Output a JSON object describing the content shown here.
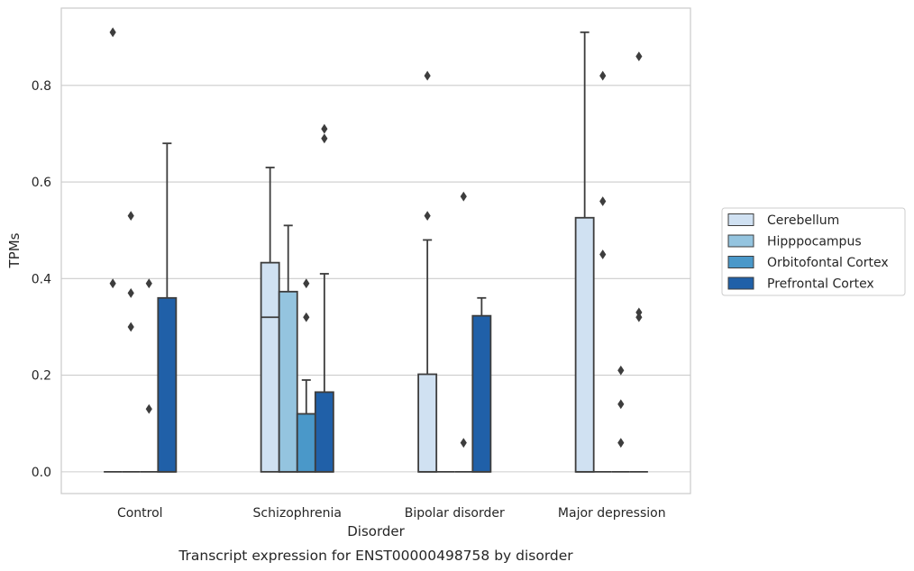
{
  "chart_data": {
    "type": "box",
    "caption": "Transcript expression for ENST00000498758 by disorder",
    "xlabel": "Disorder",
    "ylabel": "TPMs",
    "ylim": [
      -0.045,
      0.96
    ],
    "yticks": [
      0.0,
      0.2,
      0.4,
      0.6,
      0.8
    ],
    "ytick_labels": [
      "0.0",
      "0.2",
      "0.4",
      "0.6",
      "0.8"
    ],
    "grid": "horizontal",
    "legend_position": "right",
    "categories": [
      "Control",
      "Schizophrenia",
      "Bipolar disorder",
      "Major depression"
    ],
    "series": [
      {
        "name": "Cerebellum",
        "color": "#d0e1f2",
        "boxes": [
          {
            "q1": 0,
            "median": 0,
            "q3": 0,
            "whisker_low": 0,
            "whisker_high": 0,
            "outliers": [
              0.91,
              0.39
            ]
          },
          {
            "q1": 0,
            "median": 0.32,
            "q3": 0.433,
            "whisker_low": 0,
            "whisker_high": 0.63,
            "outliers": []
          },
          {
            "q1": 0,
            "median": 0,
            "q3": 0.202,
            "whisker_low": 0,
            "whisker_high": 0.48,
            "outliers": [
              0.82,
              0.53
            ]
          },
          {
            "q1": 0,
            "median": 0,
            "q3": 0.526,
            "whisker_low": 0,
            "whisker_high": 0.91,
            "outliers": []
          }
        ]
      },
      {
        "name": "Hipppocampus",
        "color": "#94c4df",
        "boxes": [
          {
            "q1": 0,
            "median": 0,
            "q3": 0,
            "whisker_low": 0,
            "whisker_high": 0,
            "outliers": [
              0.53,
              0.37,
              0.3
            ]
          },
          {
            "q1": 0,
            "median": 0,
            "q3": 0.373,
            "whisker_low": 0,
            "whisker_high": 0.51,
            "outliers": []
          },
          {
            "q1": 0,
            "median": 0,
            "q3": 0,
            "whisker_low": 0,
            "whisker_high": 0,
            "outliers": []
          },
          {
            "q1": 0,
            "median": 0,
            "q3": 0,
            "whisker_low": 0,
            "whisker_high": 0,
            "outliers": [
              0.82,
              0.56,
              0.45
            ]
          }
        ]
      },
      {
        "name": "Orbitofontal Cortex",
        "color": "#4a98c9",
        "boxes": [
          {
            "q1": 0,
            "median": 0,
            "q3": 0,
            "whisker_low": 0,
            "whisker_high": 0,
            "outliers": [
              0.39,
              0.13
            ]
          },
          {
            "q1": 0,
            "median": 0,
            "q3": 0.12,
            "whisker_low": 0,
            "whisker_high": 0.19,
            "outliers": [
              0.39,
              0.32
            ]
          },
          {
            "q1": 0,
            "median": 0,
            "q3": 0,
            "whisker_low": 0,
            "whisker_high": 0,
            "outliers": [
              0.57,
              0.06
            ]
          },
          {
            "q1": 0,
            "median": 0,
            "q3": 0,
            "whisker_low": 0,
            "whisker_high": 0,
            "outliers": [
              0.21,
              0.14,
              0.06
            ]
          }
        ]
      },
      {
        "name": "Prefrontal Cortex",
        "color": "#2060a8",
        "boxes": [
          {
            "q1": 0,
            "median": 0,
            "q3": 0.36,
            "whisker_low": 0,
            "whisker_high": 0.68,
            "outliers": []
          },
          {
            "q1": 0,
            "median": 0,
            "q3": 0.165,
            "whisker_low": 0,
            "whisker_high": 0.41,
            "outliers": [
              0.71,
              0.69
            ]
          },
          {
            "q1": 0,
            "median": 0,
            "q3": 0.323,
            "whisker_low": 0,
            "whisker_high": 0.36,
            "outliers": []
          },
          {
            "q1": 0,
            "median": 0,
            "q3": 0,
            "whisker_low": 0,
            "whisker_high": 0,
            "outliers": [
              0.86,
              0.33,
              0.32
            ]
          }
        ]
      }
    ]
  }
}
